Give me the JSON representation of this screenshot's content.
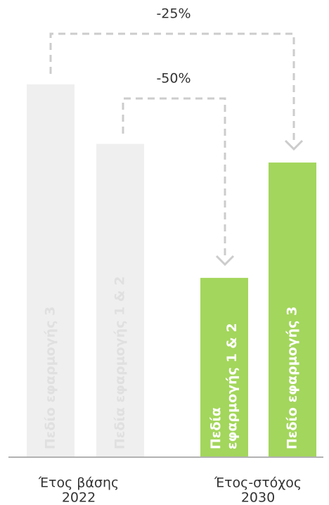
{
  "chart_data": {
    "type": "bar",
    "annotations": [
      "-25%",
      "-50%"
    ],
    "bars": [
      {
        "label": [
          "Πεδίο εφαρμογής 3"
        ],
        "value": 100,
        "color": "#efefef",
        "label_color": "#e0e0e0"
      },
      {
        "label": [
          "Πεδία εφαρμογής 1 & 2"
        ],
        "value": 84,
        "color": "#efefef",
        "label_color": "#e0e0e0"
      },
      {
        "label": [
          "Πεδία",
          "εφαρμογής 1 & 2"
        ],
        "value": 48,
        "color": "#a3d65c",
        "label_color": "#ffffff"
      },
      {
        "label": [
          "Πεδίο εφαρμογής 3"
        ],
        "value": 79,
        "color": "#a3d65c",
        "label_color": "#ffffff"
      }
    ],
    "groups": [
      {
        "label": [
          "Έτος βάσης",
          "2022"
        ]
      },
      {
        "label": [
          "Έτος-στόχος",
          "2030"
        ]
      }
    ]
  }
}
